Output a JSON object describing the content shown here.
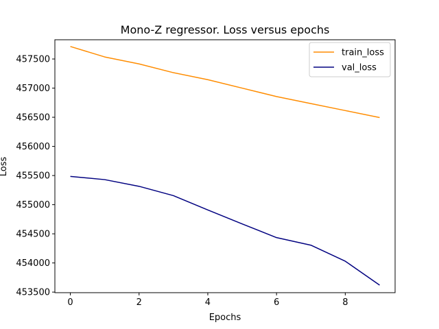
{
  "chart_data": {
    "type": "line",
    "title": "Mono-Z regressor. Loss versus epochs",
    "xlabel": "Epochs",
    "ylabel": "Loss",
    "x": [
      0,
      1,
      2,
      3,
      4,
      5,
      6,
      7,
      8,
      9
    ],
    "xlim": [
      -0.45,
      9.45
    ],
    "ylim": [
      453490,
      457830
    ],
    "xticks": [
      0,
      2,
      4,
      6,
      8
    ],
    "yticks": [
      453500,
      454000,
      454500,
      455000,
      455500,
      456000,
      456500,
      457000,
      457500
    ],
    "grid": false,
    "legend_position": "top-right",
    "series": [
      {
        "name": "train_loss",
        "color": "#ff8c00",
        "values": [
          457715,
          457535,
          457415,
          457265,
          457145,
          457000,
          456855,
          456735,
          456615,
          456495
        ]
      },
      {
        "name": "val_loss",
        "color": "#000080",
        "values": [
          455485,
          455430,
          455315,
          455155,
          454910,
          454670,
          454435,
          454305,
          454030,
          453620
        ]
      }
    ]
  }
}
